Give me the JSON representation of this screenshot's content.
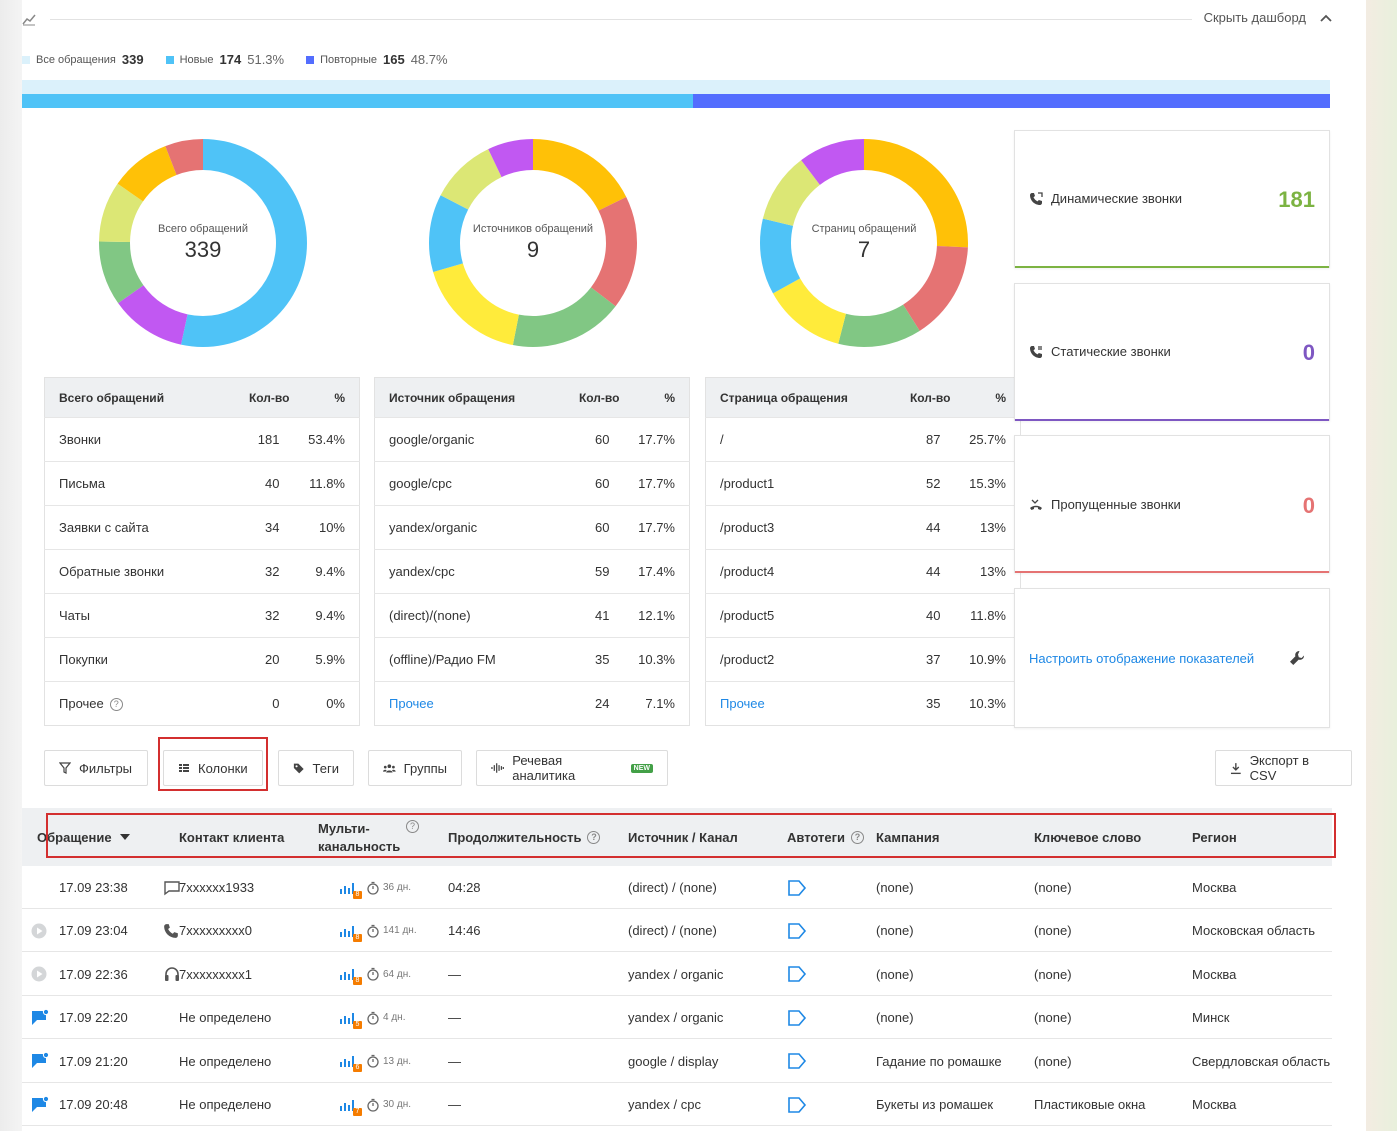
{
  "header": {
    "hide_dashboard": "Скрыть дашборд"
  },
  "legend": [
    {
      "label": "Все обращения",
      "count": "339",
      "pct": "",
      "color": "#dbf1fb"
    },
    {
      "label": "Новые",
      "count": "174",
      "pct": "51.3%",
      "color": "#4fc3f7"
    },
    {
      "label": "Повторные",
      "count": "165",
      "pct": "48.7%",
      "color": "#536dfe"
    }
  ],
  "progress": {
    "new_fraction": 0.513,
    "repeat_fraction": 0.487
  },
  "donuts": [
    {
      "label": "Всего обращений",
      "value": "339",
      "segments": [
        {
          "v": 181,
          "c": "#4fc3f7"
        },
        {
          "v": 40,
          "c": "#c158f2"
        },
        {
          "v": 34,
          "c": "#81c784"
        },
        {
          "v": 32,
          "c": "#dce775"
        },
        {
          "v": 32,
          "c": "#ffc107"
        },
        {
          "v": 20,
          "c": "#e57373"
        }
      ]
    },
    {
      "label": "Источников обращений",
      "value": "9",
      "segments": [
        {
          "v": 60,
          "c": "#ffc107"
        },
        {
          "v": 60,
          "c": "#e57373"
        },
        {
          "v": 60,
          "c": "#81c784"
        },
        {
          "v": 59,
          "c": "#ffeb3b"
        },
        {
          "v": 41,
          "c": "#4fc3f7"
        },
        {
          "v": 35,
          "c": "#dce775"
        },
        {
          "v": 24,
          "c": "#c158f2"
        }
      ]
    },
    {
      "label": "Страниц обращений",
      "value": "7",
      "segments": [
        {
          "v": 87,
          "c": "#ffc107"
        },
        {
          "v": 52,
          "c": "#e57373"
        },
        {
          "v": 44,
          "c": "#81c784"
        },
        {
          "v": 44,
          "c": "#ffeb3b"
        },
        {
          "v": 40,
          "c": "#4fc3f7"
        },
        {
          "v": 37,
          "c": "#dce775"
        },
        {
          "v": 35,
          "c": "#c158f2"
        }
      ]
    }
  ],
  "tables": [
    {
      "headers": [
        "Всего обращений",
        "Кол-во",
        "%"
      ],
      "rows": [
        [
          "Звонки",
          "181",
          "53.4%"
        ],
        [
          "Письма",
          "40",
          "11.8%"
        ],
        [
          "Заявки с сайта",
          "34",
          "10%"
        ],
        [
          "Обратные звонки",
          "32",
          "9.4%"
        ],
        [
          "Чаты",
          "32",
          "9.4%"
        ],
        [
          "Покупки",
          "20",
          "5.9%"
        ]
      ],
      "last": [
        "Прочее",
        "0",
        "0%"
      ]
    },
    {
      "headers": [
        "Источник обращения",
        "Кол-во",
        "%"
      ],
      "rows": [
        [
          "google/organic",
          "60",
          "17.7%"
        ],
        [
          "google/cpc",
          "60",
          "17.7%"
        ],
        [
          "yandex/organic",
          "60",
          "17.7%"
        ],
        [
          "yandex/cpc",
          "59",
          "17.4%"
        ],
        [
          "(direct)/(none)",
          "41",
          "12.1%"
        ],
        [
          "(offline)/Радио FM",
          "35",
          "10.3%"
        ]
      ],
      "last": [
        "Прочее",
        "24",
        "7.1%"
      ]
    },
    {
      "headers": [
        "Страница обращения",
        "Кол-во",
        "%"
      ],
      "rows": [
        [
          "/",
          "87",
          "25.7%"
        ],
        [
          "/product1",
          "52",
          "15.3%"
        ],
        [
          "/product3",
          "44",
          "13%"
        ],
        [
          "/product4",
          "44",
          "13%"
        ],
        [
          "/product5",
          "40",
          "11.8%"
        ],
        [
          "/product2",
          "37",
          "10.9%"
        ]
      ],
      "last": [
        "Прочее",
        "35",
        "10.3%"
      ]
    }
  ],
  "cards": {
    "dynamic": {
      "label": "Динамические звонки",
      "value": "181",
      "color": "#7cb342"
    },
    "static": {
      "label": "Статические звонки",
      "value": "0",
      "color": "#7e57c2"
    },
    "missed": {
      "label": "Пропущенные звонки",
      "value": "0",
      "color": "#e57373"
    },
    "settings": {
      "label": "Настроить отображение показателей"
    }
  },
  "toolbar": {
    "filters": "Фильтры",
    "columns": "Колонки",
    "tags": "Теги",
    "groups": "Группы",
    "speech": "Речевая аналитика",
    "new_badge": "NEW",
    "export": "Экспорт в CSV"
  },
  "columns": {
    "request": "Обращение",
    "contact": "Контакт клиента",
    "multi_1": "Мульти-",
    "multi_2": "канальность",
    "duration": "Продолжительность",
    "source": "Источник / Канал",
    "autotags": "Автотеги",
    "campaign": "Кампания",
    "keyword": "Ключевое слово",
    "region": "Регион"
  },
  "rows": [
    {
      "play": false,
      "type": "chat",
      "date": "17.09 23:38",
      "contact": "7xxxxxx1933",
      "channels": "8",
      "days": "36 дн.",
      "duration": "04:28",
      "source": "(direct) / (none)",
      "campaign": "(none)",
      "keyword": "(none)",
      "region": "Москва"
    },
    {
      "play": true,
      "type": "phone",
      "date": "17.09 23:04",
      "contact": "7xxxxxxxxx0",
      "channels": "8",
      "days": "141 дн.",
      "duration": "14:46",
      "source": "(direct) / (none)",
      "campaign": "(none)",
      "keyword": "(none)",
      "region": "Московская область"
    },
    {
      "play": true,
      "type": "headset",
      "date": "17.09 22:36",
      "contact": "7xxxxxxxxx1",
      "channels": "8",
      "days": "64 дн.",
      "duration": "—",
      "source": "yandex / organic",
      "campaign": "(none)",
      "keyword": "(none)",
      "region": "Москва"
    },
    {
      "play": false,
      "type": "flag",
      "date": "17.09 22:20",
      "contact": "Не определено",
      "channels": "5",
      "days": "4 дн.",
      "duration": "—",
      "source": "yandex / organic",
      "campaign": "(none)",
      "keyword": "(none)",
      "region": "Минск"
    },
    {
      "play": false,
      "type": "flag",
      "date": "17.09 21:20",
      "contact": "Не определено",
      "channels": "6",
      "days": "13 дн.",
      "duration": "—",
      "source": "google / display",
      "campaign": "Гадание по ромашке",
      "keyword": "(none)",
      "region": "Свердловская область"
    },
    {
      "play": false,
      "type": "flag",
      "date": "17.09 20:48",
      "contact": "Не определено",
      "channels": "7",
      "days": "30 дн.",
      "duration": "—",
      "source": "yandex / cpc",
      "campaign": "Букеты из ромашек",
      "keyword": "Пластиковые окна",
      "region": "Москва"
    }
  ]
}
